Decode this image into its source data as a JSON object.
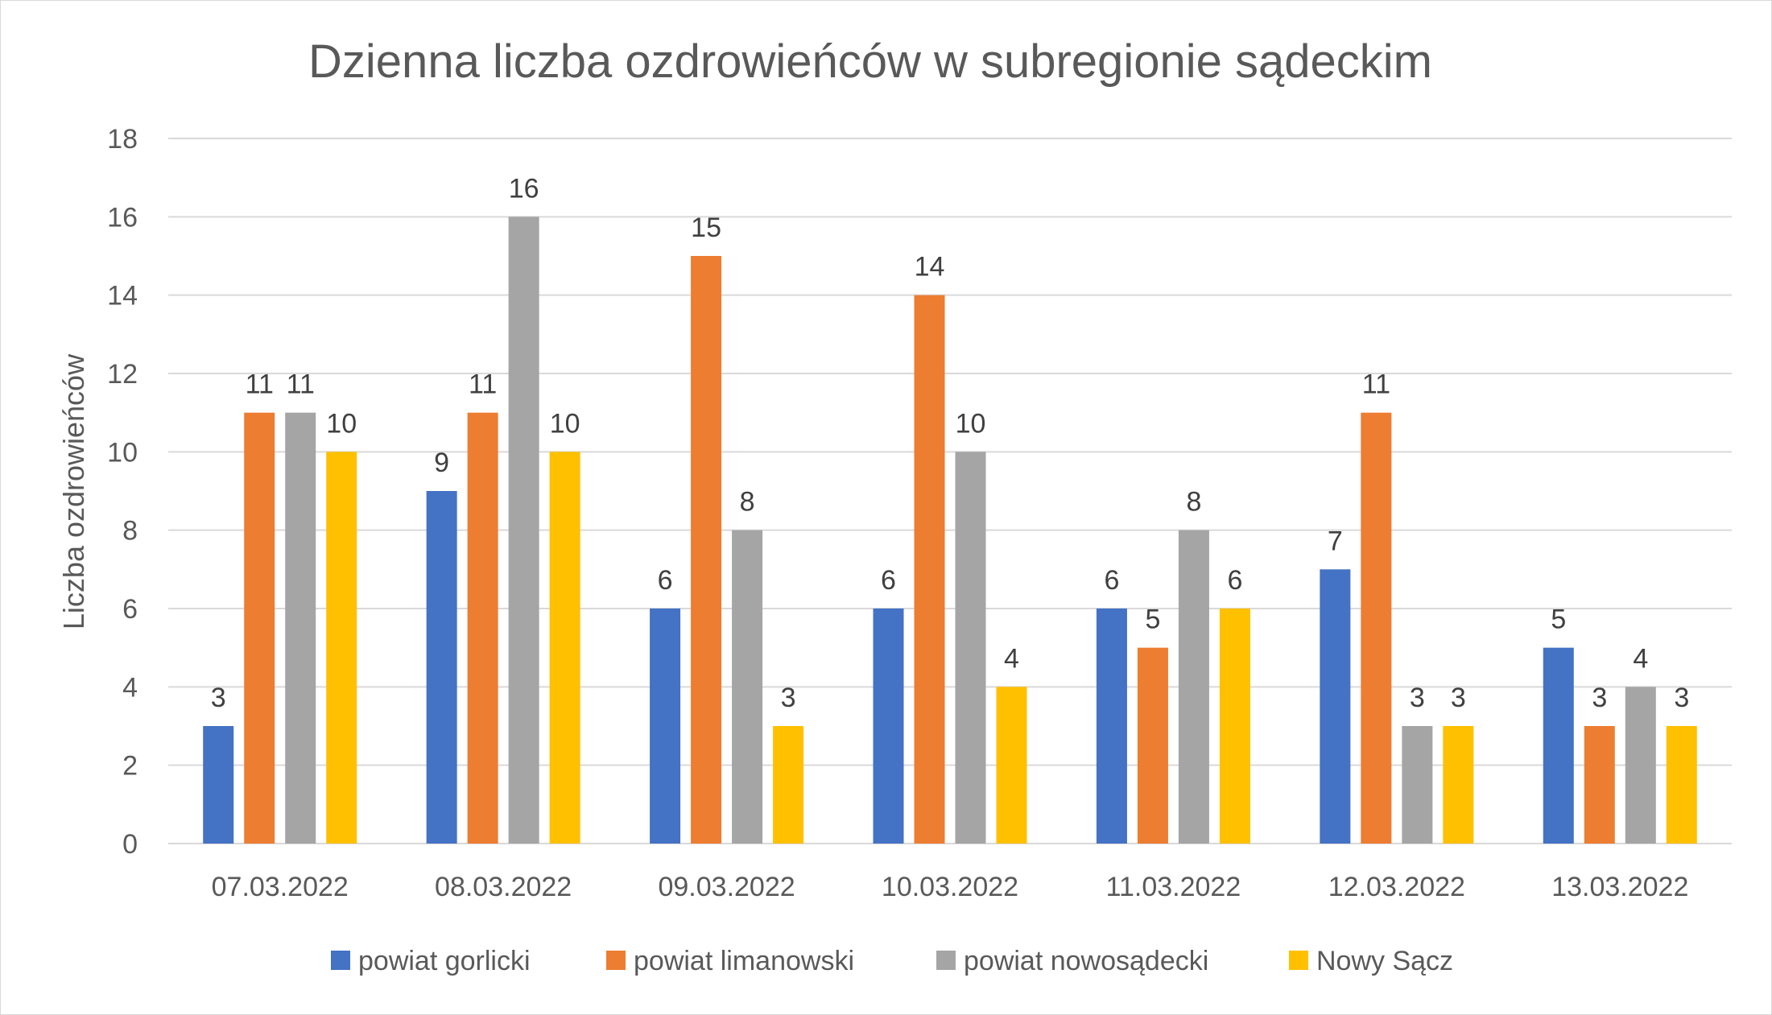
{
  "chart_data": {
    "type": "bar",
    "title": "Dzienna liczba ozdrowieńców w subregionie sądeckim",
    "ylabel": "Liczba ozdrowieńców",
    "xlabel": "",
    "ylim": [
      0,
      18
    ],
    "yticks": [
      0,
      2,
      4,
      6,
      8,
      10,
      12,
      14,
      16,
      18
    ],
    "yticks_text": [
      "0",
      "2",
      "4",
      "6",
      "8",
      "10",
      "12",
      "14",
      "16",
      "18"
    ],
    "grid": true,
    "legend_position": "bottom",
    "categories": [
      "07.03.2022",
      "08.03.2022",
      "09.03.2022",
      "10.03.2022",
      "11.03.2022",
      "12.03.2022",
      "13.03.2022"
    ],
    "series": [
      {
        "name": "powiat gorlicki",
        "color": "#4472c4",
        "values": [
          3,
          9,
          6,
          6,
          6,
          7,
          5
        ]
      },
      {
        "name": "powiat limanowski",
        "color": "#ed7d31",
        "values": [
          11,
          11,
          15,
          14,
          5,
          11,
          3
        ]
      },
      {
        "name": "powiat nowosądecki",
        "color": "#a5a5a5",
        "values": [
          11,
          16,
          8,
          10,
          8,
          3,
          4
        ]
      },
      {
        "name": "Nowy Sącz",
        "color": "#ffc000",
        "values": [
          10,
          10,
          3,
          4,
          6,
          3,
          3
        ]
      }
    ]
  }
}
